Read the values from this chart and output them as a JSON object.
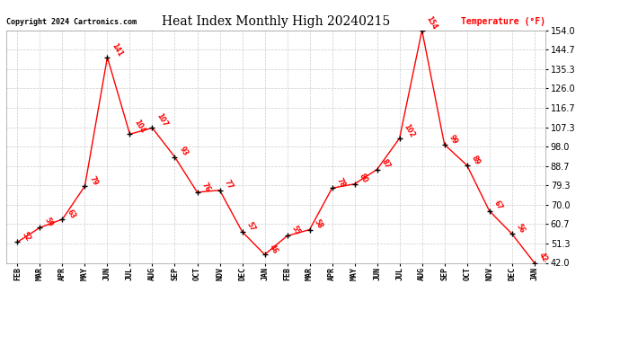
{
  "title": "Heat Index Monthly High 20240215",
  "ylabel": "Temperature (°F)",
  "copyright": "Copyright 2024 Cartronics.com",
  "x_labels": [
    "FEB",
    "MAR",
    "APR",
    "MAY",
    "JUN",
    "JUL",
    "AUG",
    "SEP",
    "OCT",
    "NOV",
    "DEC",
    "JAN",
    "FEB",
    "MAR",
    "APR",
    "MAY",
    "JUN",
    "JUL",
    "AUG",
    "SEP",
    "OCT",
    "NOV",
    "DEC",
    "JAN"
  ],
  "y_values": [
    52,
    59,
    63,
    79,
    141,
    104,
    107,
    93,
    76,
    77,
    57,
    46,
    55,
    58,
    78,
    80,
    87,
    102,
    154,
    99,
    89,
    67,
    56,
    42
  ],
  "y_ticks": [
    42.0,
    51.3,
    60.7,
    70.0,
    79.3,
    88.7,
    98.0,
    107.3,
    116.7,
    126.0,
    135.3,
    144.7,
    154.0
  ],
  "line_color": "red",
  "marker_color": "black",
  "annotation_color": "red",
  "bg_color": "white",
  "grid_color": "#cccccc",
  "title_color": "black",
  "copyright_color": "black",
  "ylabel_color": "red",
  "ylim_min": 42.0,
  "ylim_max": 154.0
}
